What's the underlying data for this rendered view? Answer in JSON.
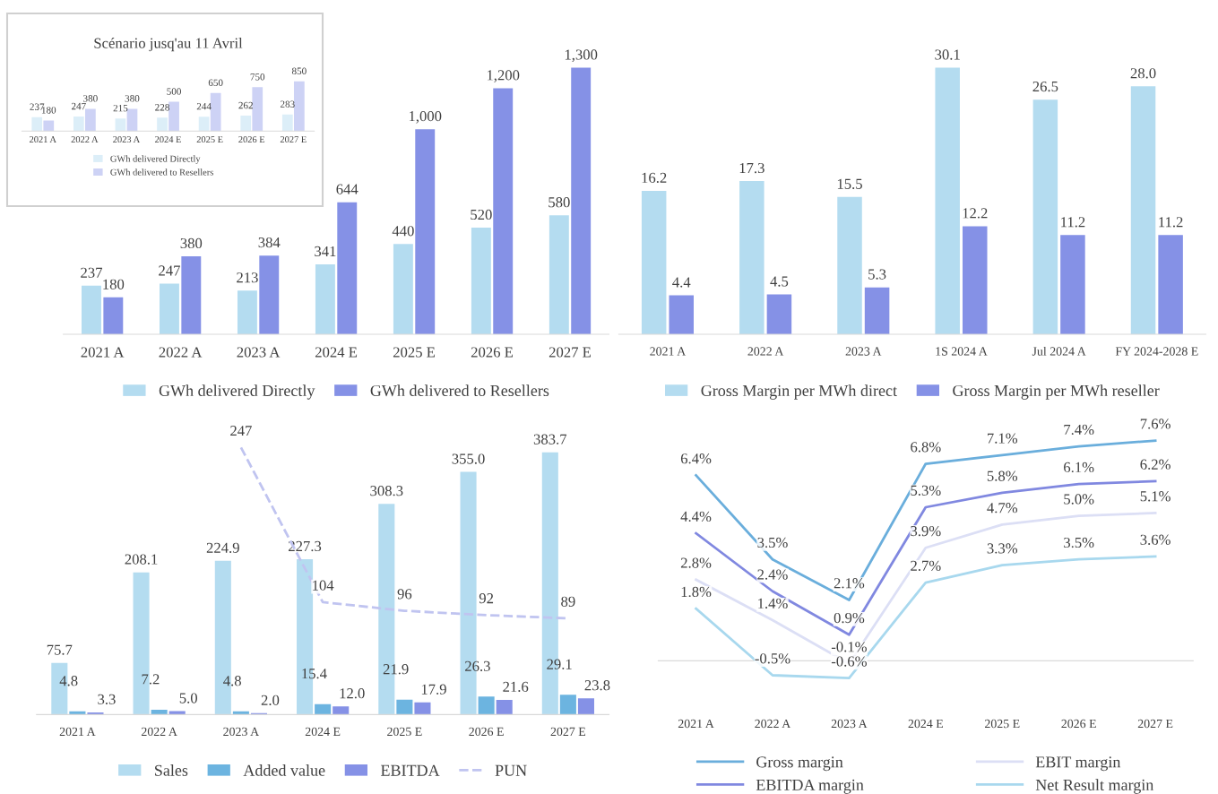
{
  "chart_data": [
    {
      "type": "bar",
      "title": "Scénario jusq'au 11 Avril",
      "categories": [
        "2021 A",
        "2022 A",
        "2023 A",
        "2024 E",
        "2025 E",
        "2026 E",
        "2027 E"
      ],
      "legend": "bottom",
      "data_labels": true,
      "series": [
        {
          "name": "GWh delivered Directly",
          "color": "#dceef8",
          "values": [
            237,
            247,
            215,
            228,
            244,
            262,
            283
          ]
        },
        {
          "name": "GWh delivered to Resellers",
          "color": "#cdd2f5",
          "values": [
            180,
            380,
            380,
            500,
            650,
            750,
            850
          ]
        }
      ]
    },
    {
      "type": "bar",
      "categories": [
        "2021 A",
        "2022 A",
        "2023 A",
        "2024 E",
        "2025 E",
        "2026 E",
        "2027 E"
      ],
      "legend": "bottom",
      "series": [
        {
          "name": "GWh delivered Directly",
          "color": "#b4dcf0",
          "values": [
            237,
            247,
            213,
            341,
            440,
            520,
            580
          ],
          "value_labels": [
            "237",
            "247",
            "213",
            "341",
            "440",
            "520",
            "580"
          ]
        },
        {
          "name": "GWh delivered to Resellers",
          "color": "#8591e6",
          "values": [
            180,
            380,
            384,
            644,
            1000,
            1200,
            1300
          ],
          "value_labels": [
            "180",
            "380",
            "384",
            "644",
            "1,000",
            "1,200",
            "1,300"
          ]
        }
      ]
    },
    {
      "type": "bar",
      "categories": [
        "2021 A",
        "2022 A",
        "2023 A",
        "1S 2024 A",
        "Jul 2024 A",
        "FY 2024-2028 E"
      ],
      "legend": "bottom",
      "series": [
        {
          "name": "Gross Margin per MWh direct",
          "color": "#b4dcf0",
          "values": [
            16.2,
            17.3,
            15.5,
            30.1,
            26.5,
            28.0
          ],
          "value_labels": [
            "16.2",
            "17.3",
            "15.5",
            "30.1",
            "26.5",
            "28.0"
          ]
        },
        {
          "name": "Gross Margin per MWh reseller",
          "color": "#8591e6",
          "values": [
            4.4,
            4.5,
            5.3,
            12.2,
            11.2,
            11.2
          ],
          "value_labels": [
            "4.4",
            "4.5",
            "5.3",
            "12.2",
            "11.2",
            "11.2"
          ]
        }
      ]
    },
    {
      "type": "bar",
      "categories": [
        "2021 A",
        "2022 A",
        "2023 A",
        "2024 E",
        "2025 E",
        "2026 E",
        "2027 E"
      ],
      "legend": "bottom",
      "series": [
        {
          "name": "Sales",
          "color": "#b4dcf0",
          "values": [
            75.7,
            208.1,
            224.9,
            227.3,
            308.3,
            355.0,
            383.7
          ],
          "value_labels": [
            "75.7",
            "208.1",
            "224.9",
            "227.3",
            "308.3",
            "355.0",
            "383.7"
          ]
        },
        {
          "name": "Added value",
          "color": "#6cb4e0",
          "values": [
            4.8,
            7.2,
            4.8,
            15.4,
            21.9,
            26.3,
            29.1
          ],
          "value_labels": [
            "4.8",
            "7.2",
            "4.8",
            "15.4",
            "21.9",
            "26.3",
            "29.1"
          ]
        },
        {
          "name": "EBITDA",
          "color": "#8591e6",
          "values": [
            3.3,
            5.0,
            2.0,
            12.0,
            17.9,
            21.6,
            23.8
          ],
          "value_labels": [
            "3.3",
            "5.0",
            "2.0",
            "12.0",
            "17.9",
            "21.6",
            "23.8"
          ]
        },
        {
          "name": "PUN",
          "type": "line",
          "axis": "y2",
          "line_style": "dashed",
          "color": "#c0c4f0",
          "values": [
            null,
            null,
            247,
            104,
            96,
            92,
            89
          ],
          "data_labels": true
        }
      ]
    },
    {
      "type": "line",
      "categories": [
        "2021 A",
        "2022 A",
        "2023 A",
        "2024 E",
        "2025 E",
        "2026 E",
        "2027 E"
      ],
      "legend": "bottom",
      "series": [
        {
          "name": "Gross margin",
          "color": "#6aaedc",
          "values": [
            6.4,
            3.5,
            2.1,
            6.8,
            7.1,
            7.4,
            7.6
          ],
          "value_labels": [
            "6.4%",
            "3.5%",
            "2.1%",
            "6.8%",
            "7.1%",
            "7.4%",
            "7.6%"
          ]
        },
        {
          "name": "EBITDA margin",
          "color": "#8088e0",
          "values": [
            4.4,
            2.4,
            0.9,
            5.3,
            5.8,
            6.1,
            6.2
          ],
          "value_labels": [
            "4.4%",
            "2.4%",
            "0.9%",
            "5.3%",
            "5.8%",
            "6.1%",
            "6.2%"
          ]
        },
        {
          "name": "EBIT margin",
          "color": "#dcdff5",
          "values": [
            2.8,
            1.4,
            -0.1,
            3.9,
            4.7,
            5.0,
            5.1
          ],
          "value_labels": [
            "2.8%",
            "1.4%",
            "-0.1%",
            "3.9%",
            "4.7%",
            "5.0%",
            "5.1%"
          ]
        },
        {
          "name": "Net Result margin",
          "color": "#a8d8ee",
          "values": [
            1.8,
            -0.5,
            -0.6,
            2.7,
            3.3,
            3.5,
            3.6
          ],
          "value_labels": [
            "1.8%",
            "-0.5%",
            "-0.6%",
            "2.7%",
            "3.3%",
            "3.5%",
            "3.6%"
          ]
        }
      ]
    }
  ]
}
